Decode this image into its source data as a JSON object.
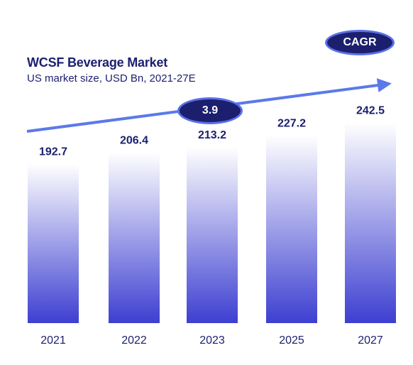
{
  "header": {
    "title": "WCSF Beverage Market",
    "subtitle": "US market size, USD Bn, 2021-27E"
  },
  "cagr": {
    "label": "CAGR",
    "value": "3.9"
  },
  "colors": {
    "bar_top": "#ffffff",
    "bar_bottom": "#3d3fd1",
    "text": "#1b1f6e",
    "arrow": "#5b7ae8",
    "pill_fill": "#1b1f6e",
    "pill_border": "#5b70e8"
  },
  "chart_data": {
    "type": "bar",
    "categories": [
      "2021",
      "2022",
      "2023",
      "2025",
      "2027"
    ],
    "values": [
      192.7,
      206.4,
      213.2,
      227.2,
      242.5
    ],
    "value_labels": [
      "192.7",
      "206.4",
      "213.2",
      "227.2",
      "242.5"
    ],
    "title": "WCSF Beverage Market",
    "subtitle": "US market size, USD Bn, 2021-27E",
    "xlabel": "",
    "ylabel": "",
    "ylim": [
      0,
      250
    ],
    "grid": false,
    "legend": "none",
    "fill": "vertical gradient, light at top to dark blue at bottom",
    "annotations": [
      "CAGR",
      "3.9"
    ]
  }
}
